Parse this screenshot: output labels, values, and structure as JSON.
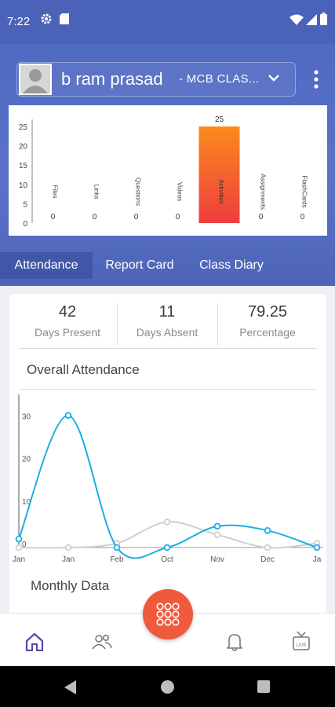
{
  "status_bar": {
    "time": "7:22"
  },
  "profile": {
    "name": "b ram prasad",
    "class_label": "- MCB CLAS..."
  },
  "content_chart": {
    "chart_data": {
      "type": "bar",
      "categories": [
        "Files",
        "Links",
        "Questions",
        "Videos",
        "Activities",
        "Assignments",
        "FlashCards"
      ],
      "values": [
        0,
        0,
        0,
        0,
        25,
        0,
        0
      ],
      "value_labels": [
        "0",
        "0",
        "0",
        "0",
        "25",
        "0",
        "0"
      ],
      "ylim": [
        0,
        25
      ],
      "yticks": [
        "0",
        "5",
        "10",
        "15",
        "20",
        "25"
      ],
      "bar_color": "#f05a3a"
    }
  },
  "tabs": [
    {
      "label": "Attendance"
    },
    {
      "label": "Report Card"
    },
    {
      "label": "Class Diary"
    }
  ],
  "stats": [
    {
      "value": "42",
      "label": "Days Present"
    },
    {
      "value": "11",
      "label": "Days Absent"
    },
    {
      "value": "79.25",
      "label": "Percentage"
    }
  ],
  "attendance": {
    "title": "Overall Attendance",
    "chart_data": {
      "type": "line",
      "categories": [
        "Jan",
        "Jan",
        "Feb",
        "Oct",
        "Nov",
        "Dec",
        "Ja"
      ],
      "x_tick_labels": [
        "Jan",
        "Jan",
        "Feb",
        "Oct",
        "Nov",
        "Dec",
        "Ja"
      ],
      "yticks": [
        "0",
        "10",
        "20",
        "30"
      ],
      "ylim": [
        0,
        33
      ],
      "series": [
        {
          "color": "#1aaee6",
          "values": [
            2,
            31,
            0,
            0,
            5,
            4,
            0
          ]
        },
        {
          "color": "#cfcfcf",
          "values": [
            0,
            0,
            1,
            6,
            3,
            0,
            1
          ]
        }
      ]
    }
  },
  "monthly": {
    "title": "Monthly Data"
  },
  "colors": {
    "header": "#5069c2",
    "accent": "#ee5a3b",
    "line_primary": "#1aaee6",
    "nav_active": "#5b4aa8"
  },
  "nav_icons": [
    "home-icon",
    "people-icon",
    "apps-grid-icon",
    "bell-icon",
    "live-tv-icon"
  ]
}
